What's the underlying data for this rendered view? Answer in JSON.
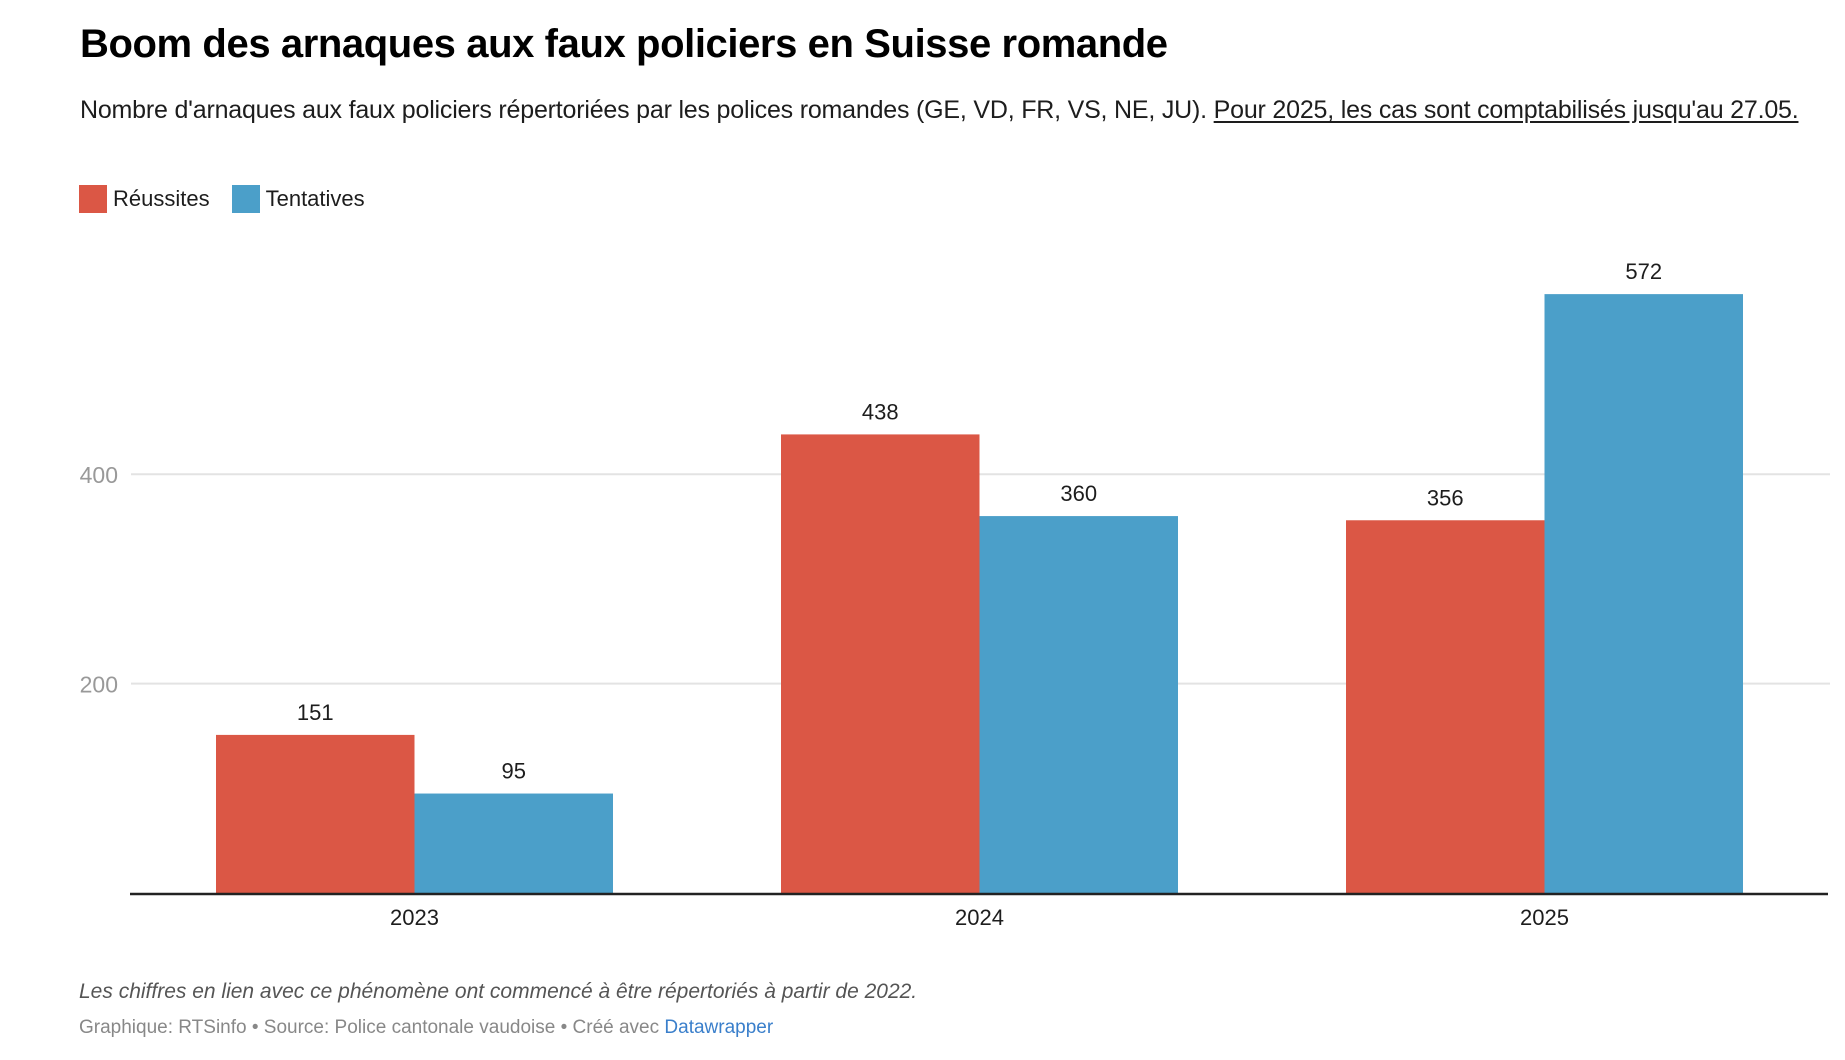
{
  "header": {
    "title": "Boom des arnaques aux faux policiers en Suisse romande",
    "subtitle_main": "Nombre d'arnaques aux faux policiers répertoriées par les polices romandes (GE, VD, FR, VS, NE, JU). ",
    "subtitle_note": "Pour 2025, les cas sont comptabilisés jusqu'au 27.05."
  },
  "legend": [
    {
      "label": "Réussites",
      "color": "#db5745"
    },
    {
      "label": "Tentatives",
      "color": "#4b9fc9"
    }
  ],
  "footer": {
    "note": "Les chiffres en lien avec ce phénomène ont commencé à être répertoriés à partir de 2022.",
    "credit_prefix": "Graphique: RTSinfo • Source: Police cantonale vaudoise • Créé avec ",
    "credit_link": "Datawrapper",
    "link_color": "#3a7fcb"
  },
  "chart_data": {
    "type": "bar",
    "title": "Boom des arnaques aux faux policiers en Suisse romande",
    "xlabel": "",
    "ylabel": "",
    "categories": [
      "2023",
      "2024",
      "2025"
    ],
    "series": [
      {
        "name": "Réussites",
        "color": "#db5745",
        "values": [
          151,
          438,
          356
        ]
      },
      {
        "name": "Tentatives",
        "color": "#4b9fc9",
        "values": [
          95,
          360,
          572
        ]
      }
    ],
    "yticks": [
      200,
      400
    ],
    "ylim": [
      0,
      600
    ],
    "grid": true,
    "legend_position": "top-left",
    "data_labels": true
  }
}
